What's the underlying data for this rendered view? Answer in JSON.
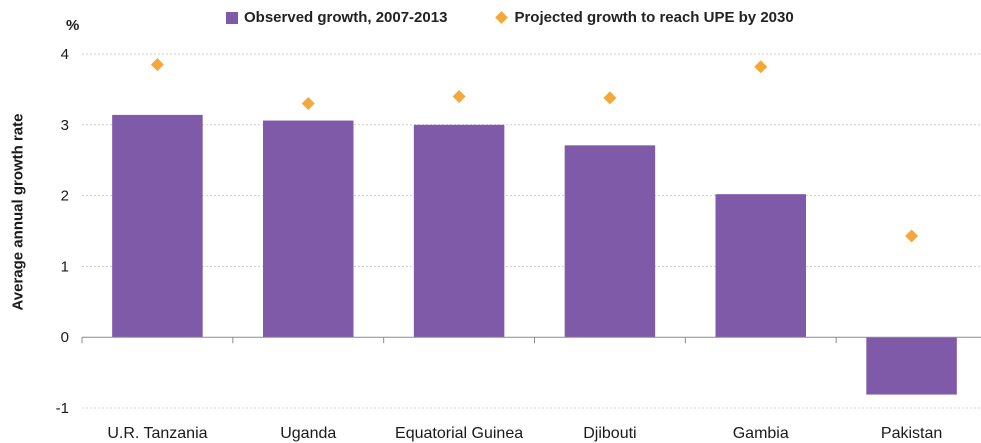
{
  "chart_data": {
    "type": "bar",
    "title": "",
    "unit_label": "%",
    "ylabel": "Average annual growth rate",
    "xlabel": "",
    "ylim": [
      -1,
      4
    ],
    "yticks": [
      -1,
      0,
      1,
      2,
      3,
      4
    ],
    "grid": "horizontal dotted",
    "legend_position": "top",
    "categories": [
      "U.R. Tanzania",
      "Uganda",
      "Equatorial Guinea",
      "Djibouti",
      "Gambia",
      "Pakistan"
    ],
    "series": [
      {
        "name": "Observed growth, 2007-2013",
        "type": "bar",
        "color": "#7f5aa8",
        "values": [
          3.14,
          3.06,
          3.0,
          2.71,
          2.02,
          -0.81
        ]
      },
      {
        "name": "Projected growth to reach UPE by 2030",
        "type": "scatter",
        "marker": "diamond",
        "color": "#f5a83a",
        "values": [
          3.85,
          3.3,
          3.4,
          3.38,
          3.82,
          1.43
        ]
      }
    ]
  }
}
